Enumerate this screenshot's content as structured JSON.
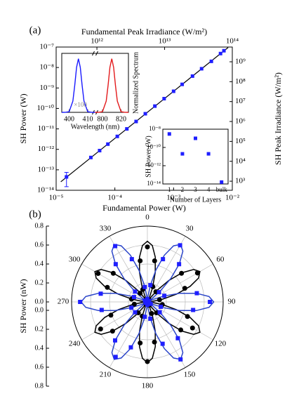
{
  "chart_data": [
    {
      "type": "scatter",
      "label": "(a)",
      "xlabel": "Fundamental Power (W)",
      "ylabel": "SH Power (W)",
      "x2label": "Fundamental Peak Irradiance (W/m²)",
      "y2label": "SH Peak Irradiance (W/m²)",
      "xscale": "log",
      "yscale": "log",
      "xlim": [
        1e-05,
        0.01
      ],
      "xticks": [
        {
          "value": 1e-05,
          "label": "10⁻⁵"
        },
        {
          "value": 0.0001,
          "label": "10⁻⁴"
        },
        {
          "value": 0.001,
          "label": "10⁻³"
        },
        {
          "value": 0.01,
          "label": "10⁻²"
        }
      ],
      "ylim": [
        1e-14,
        1e-07
      ],
      "yticks": [
        {
          "value": 1e-14,
          "label": "10⁻¹⁴"
        },
        {
          "value": 1e-13,
          "label": "10⁻¹³"
        },
        {
          "value": 1e-12,
          "label": "10⁻¹²"
        },
        {
          "value": 1e-11,
          "label": "10⁻¹¹"
        },
        {
          "value": 1e-10,
          "label": "10⁻¹⁰"
        },
        {
          "value": 1e-09,
          "label": "10⁻⁹"
        },
        {
          "value": 1e-08,
          "label": "10⁻⁸"
        },
        {
          "value": 1e-07,
          "label": "10⁻⁷"
        }
      ],
      "x2lim": [
        250000000000.0,
        100000000000000.0
      ],
      "x2ticks": [
        {
          "value": 1000000000000.0,
          "label": "10¹²"
        },
        {
          "value": 10000000000000.0,
          "label": "10¹³"
        },
        {
          "value": 100000000000000.0,
          "label": "10¹⁴"
        }
      ],
      "y2lim": [
        350,
        5500000000.0
      ],
      "y2ticks": [
        {
          "value": 1000.0,
          "label": "10³"
        },
        {
          "value": 10000.0,
          "label": "10⁴"
        },
        {
          "value": 100000.0,
          "label": "10⁵"
        },
        {
          "value": 1000000.0,
          "label": "10⁶"
        },
        {
          "value": 10000000.0,
          "label": "10⁷"
        },
        {
          "value": 100000000.0,
          "label": "10⁸"
        },
        {
          "value": 1000000000.0,
          "label": "10⁹"
        }
      ],
      "series": [
        {
          "color": "#000000",
          "style": "line",
          "x": [
            1.2e-05,
            0.0085
          ],
          "values": [
            2.6e-14,
            9.5e-08
          ]
        },
        {
          "color": "#1f1fff",
          "marker": "square",
          "x": [
            1.5e-05,
            3.9e-05,
            5.5e-05,
            7.6e-05,
            0.00011,
            0.00016,
            0.00023,
            0.00033,
            0.00048,
            0.00069,
            0.001,
            0.0014,
            0.0021,
            0.003,
            0.0044,
            0.0063,
            0.0072
          ],
          "values": [
            4.5e-14,
            4e-13,
            8.7e-13,
            1.8e-12,
            4.3e-12,
            1e-11,
            2.3e-11,
            5.5e-11,
            1.3e-10,
            3e-10,
            6.9e-10,
            1.5e-09,
            3.8e-09,
            8.7e-09,
            2e-08,
            4.8e-08,
            6.6e-08
          ],
          "errors": [
            3e-14,
            null,
            null,
            null,
            null,
            null,
            null,
            null,
            null,
            null,
            null,
            null,
            null,
            null,
            null,
            null,
            null
          ]
        }
      ]
    },
    {
      "type": "line",
      "xlabel": "Wavelength (nm)",
      "ylabel": "Normalized Spectrum",
      "annotation": "×100",
      "ylim": [
        0,
        1.1
      ],
      "x_segments": [
        {
          "xlim": [
            396,
            414
          ],
          "xticks": [
            400,
            410
          ]
        },
        {
          "xlim": [
            792,
            828
          ],
          "xticks": [
            800,
            820
          ]
        }
      ],
      "series": [
        {
          "color": "#1a1aff",
          "x": [
            396,
            398,
            400,
            402,
            403,
            404,
            405,
            406,
            407,
            408,
            410,
            412,
            414
          ],
          "values": [
            0,
            0.0002,
            0.013,
            0.21,
            0.5,
            0.84,
            1,
            0.84,
            0.5,
            0.21,
            0.013,
            0.0002,
            0
          ]
        },
        {
          "color": "#e31a1c",
          "x": [
            792,
            796,
            800,
            804,
            806,
            808,
            810,
            812,
            814,
            816,
            820,
            824,
            828
          ],
          "values": [
            0,
            0.0002,
            0.013,
            0.21,
            0.5,
            0.84,
            1,
            0.84,
            0.5,
            0.21,
            0.013,
            0.0002,
            0
          ]
        }
      ]
    },
    {
      "type": "scatter",
      "xlabel": "Number of Layers",
      "ylabel": "SH Power (W)",
      "categories": [
        "1",
        "2",
        "3",
        "4",
        "bulk"
      ],
      "values": [
        3e-09,
        2e-11,
        1e-09,
        2e-11,
        1.6e-14
      ],
      "color": "#1f1fff",
      "marker": "square",
      "yscale": "log",
      "ylim": [
        1e-14,
        1e-08
      ],
      "yticks": [
        {
          "value": 1e-14,
          "label": "10⁻¹⁴"
        },
        {
          "value": 1e-12,
          "label": "10⁻¹²"
        },
        {
          "value": 1e-10,
          "label": "10⁻¹⁰"
        },
        {
          "value": 1e-08,
          "label": "10⁻⁸"
        }
      ]
    },
    {
      "type": "polar",
      "label": "(b)",
      "ylabel": "SH Power (nW)",
      "rlim": [
        0,
        0.8
      ],
      "rticks": [
        {
          "value": 0,
          "label": "0.0"
        },
        0.2,
        0.4,
        0.6,
        0.8
      ],
      "thetaticks": [
        0,
        30,
        60,
        90,
        120,
        150,
        180,
        210,
        240,
        270,
        300,
        330
      ],
      "theta": [
        0,
        10,
        20,
        30,
        40,
        50,
        60,
        70,
        80,
        90,
        100,
        110,
        120,
        130,
        140,
        150,
        160,
        170,
        180,
        190,
        200,
        210,
        220,
        230,
        240,
        250,
        260,
        270,
        280,
        290,
        300,
        310,
        320,
        330,
        340,
        350
      ],
      "fit_theta": [
        0,
        5,
        10,
        15,
        20,
        25,
        30,
        35,
        40,
        45,
        50,
        55,
        60,
        65,
        70,
        75,
        80,
        85,
        90,
        95,
        100,
        105,
        110,
        115,
        120,
        125,
        130,
        135,
        140,
        145,
        150,
        155,
        160,
        165,
        170,
        175,
        180,
        185,
        190,
        195,
        200,
        205,
        210,
        215,
        220,
        225,
        230,
        235,
        240,
        245,
        250,
        255,
        260,
        265,
        270,
        275,
        280,
        285,
        290,
        295,
        300,
        305,
        310,
        315,
        320,
        325,
        330,
        335,
        340,
        345,
        350,
        355
      ],
      "series": [
        {
          "color": "#000000",
          "style": "line",
          "values": [
            0.64,
            0.597,
            0.48,
            0.32,
            0.16,
            0.043,
            0,
            0.043,
            0.16,
            0.32,
            0.48,
            0.597,
            0.64,
            0.597,
            0.48,
            0.32,
            0.16,
            0.043,
            0,
            0.043,
            0.16,
            0.32,
            0.48,
            0.597,
            0.64,
            0.597,
            0.48,
            0.32,
            0.16,
            0.043,
            0,
            0.043,
            0.16,
            0.32,
            0.48,
            0.597,
            0.64,
            0.597,
            0.48,
            0.32,
            0.16,
            0.043,
            0,
            0.043,
            0.16,
            0.32,
            0.48,
            0.597,
            0.64,
            0.597,
            0.48,
            0.32,
            0.16,
            0.043,
            0,
            0.043,
            0.16,
            0.32,
            0.48,
            0.597,
            0.64,
            0.597,
            0.48,
            0.32,
            0.16,
            0.043,
            0,
            0.043,
            0.16,
            0.32,
            0.48,
            0.597
          ]
        },
        {
          "color": "#2a44c8",
          "style": "line",
          "values": [
            0,
            0.047,
            0.175,
            0.35,
            0.525,
            0.653,
            0.7,
            0.653,
            0.525,
            0.35,
            0.175,
            0.047,
            0,
            0.047,
            0.175,
            0.35,
            0.525,
            0.653,
            0.7,
            0.653,
            0.525,
            0.35,
            0.175,
            0.047,
            0,
            0.047,
            0.175,
            0.35,
            0.525,
            0.653,
            0.7,
            0.653,
            0.525,
            0.35,
            0.175,
            0.047,
            0,
            0.047,
            0.175,
            0.35,
            0.525,
            0.653,
            0.7,
            0.653,
            0.525,
            0.35,
            0.175,
            0.047,
            0,
            0.047,
            0.175,
            0.35,
            0.525,
            0.653,
            0.7,
            0.653,
            0.525,
            0.35,
            0.175,
            0.047,
            0,
            0.047,
            0.175,
            0.35,
            0.525,
            0.653,
            0.7,
            0.653,
            0.525,
            0.35,
            0.175,
            0.047
          ]
        },
        {
          "color": "#000000",
          "marker": "circle",
          "values": [
            0.58,
            0.44,
            0.17,
            0.03,
            0.14,
            0.47,
            0.61,
            0.42,
            0.13,
            0.02,
            0.16,
            0.45,
            0.55,
            0.46,
            0.15,
            0.04,
            0.13,
            0.43,
            0.63,
            0.44,
            0.16,
            0.03,
            0.15,
            0.48,
            0.57,
            0.41,
            0.14,
            0.02,
            0.17,
            0.45,
            0.6,
            0.47,
            0.12,
            0.03,
            0.14,
            0.44
          ]
        },
        {
          "color": "#1f1fff",
          "marker": "square",
          "values": [
            0.03,
            0.18,
            0.48,
            0.69,
            0.52,
            0.16,
            0.02,
            0.19,
            0.53,
            0.66,
            0.49,
            0.15,
            0.04,
            0.17,
            0.5,
            0.7,
            0.47,
            0.18,
            0.03,
            0.16,
            0.51,
            0.67,
            0.53,
            0.17,
            0.02,
            0.18,
            0.49,
            0.71,
            0.5,
            0.15,
            0.03,
            0.17,
            0.52,
            0.68,
            0.48,
            0.16
          ]
        }
      ]
    }
  ]
}
